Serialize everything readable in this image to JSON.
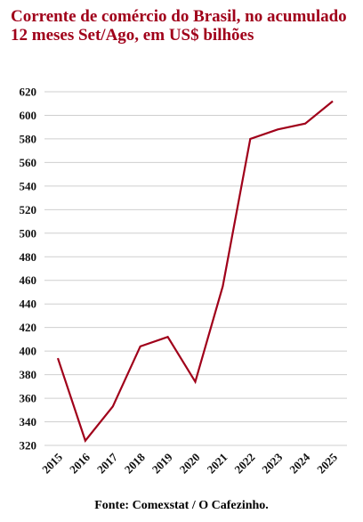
{
  "chart_data": {
    "type": "line",
    "title": "Corrente de comércio do Brasil, no acumulado 12 meses Set/Ago, em US$ bilhões",
    "source": "Fonte: Comexstat / O Cafezinho.",
    "categories": [
      "2015",
      "2016",
      "2017",
      "2018",
      "2019",
      "2020",
      "2021",
      "2022",
      "2023",
      "2024",
      "2025"
    ],
    "series": [
      {
        "name": "Corrente de comércio",
        "color": "#a0001a",
        "values": [
          394,
          324,
          353,
          404,
          412,
          374,
          455,
          580,
          588,
          593,
          612
        ]
      }
    ],
    "ylim": [
      320,
      620
    ],
    "yticks": [
      320,
      340,
      360,
      380,
      400,
      420,
      440,
      460,
      480,
      500,
      520,
      540,
      560,
      580,
      600,
      620
    ],
    "grid": true
  }
}
